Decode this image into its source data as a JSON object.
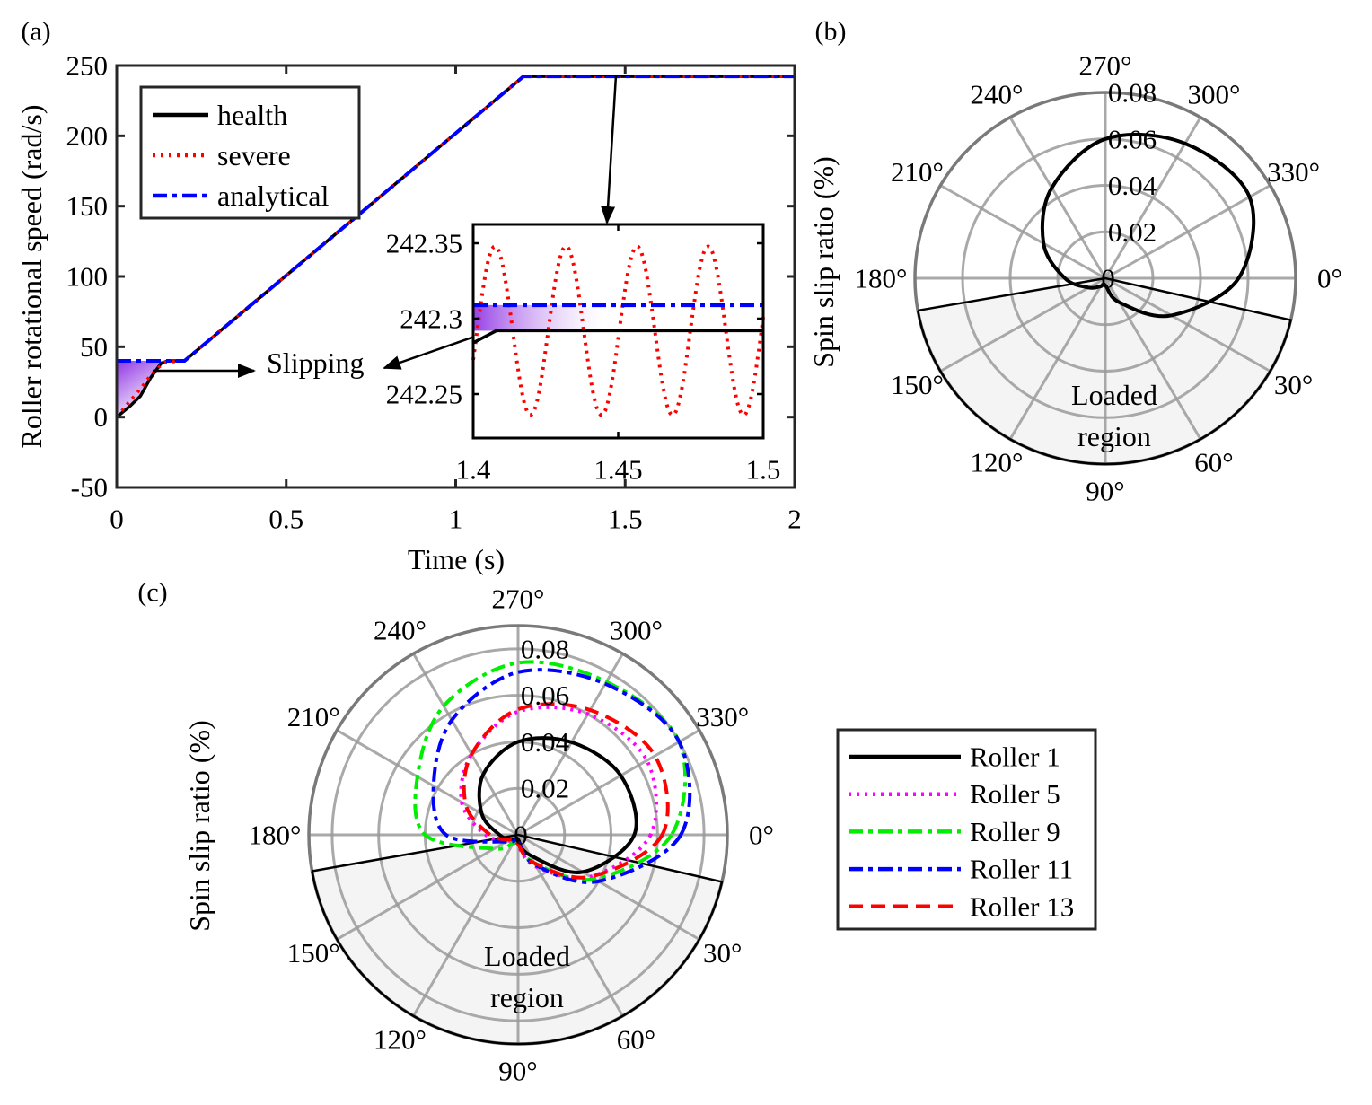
{
  "panel_labels": [
    "(a)",
    "(b)",
    "(c)"
  ],
  "colors": {
    "health": "#000000",
    "severe": "#ff0000",
    "analytical": "#0000ff",
    "roller1": "#000000",
    "roller5": "#ff00ff",
    "roller9": "#00ee00",
    "roller11": "#0000ff",
    "roller13": "#ff0000",
    "slip_fill": "#8a2be2",
    "loaded_fill": "#f4f4f4"
  },
  "chart_data": [
    {
      "type": "line",
      "xlabel": "Time (s)",
      "ylabel": "Roller rotational speed (rad/s)",
      "xlim": [
        0,
        2
      ],
      "ylim": [
        -50,
        250
      ],
      "xticks": [
        "0",
        "0.5",
        "1",
        "1.5",
        "2"
      ],
      "xtick_values": [
        0,
        0.5,
        1,
        1.5,
        2
      ],
      "yticks": [
        "-50",
        "0",
        "50",
        "100",
        "150",
        "200",
        "250"
      ],
      "ytick_values": [
        -50,
        0,
        50,
        100,
        150,
        200,
        250
      ],
      "legend": [
        "health",
        "severe",
        "analytical"
      ],
      "legend_position": "top-left",
      "series": [
        {
          "name": "health",
          "style": "solid",
          "points": [
            [
              0,
              0
            ],
            [
              0.04,
              8
            ],
            [
              0.07,
              15
            ],
            [
              0.1,
              28
            ],
            [
              0.13,
              38
            ],
            [
              0.15,
              40
            ],
            [
              0.2,
              40
            ],
            [
              1.2,
              242.3
            ],
            [
              2,
              242.3
            ]
          ]
        },
        {
          "name": "severe",
          "style": "dotted",
          "points": [
            [
              0,
              0
            ],
            [
              0.03,
              9
            ],
            [
              0.07,
              20
            ],
            [
              0.1,
              30
            ],
            [
              0.14,
              39
            ],
            [
              0.2,
              40
            ],
            [
              1.2,
              242.3
            ],
            [
              2,
              242.3
            ]
          ]
        },
        {
          "name": "analytical",
          "style": "dash-dot",
          "points": [
            [
              0,
              40
            ],
            [
              0.2,
              40
            ],
            [
              1.2,
              242.3
            ],
            [
              2,
              242.3
            ]
          ]
        }
      ],
      "annotation": "Slipping",
      "inset": {
        "xlim": [
          1.4,
          1.5
        ],
        "ylim": [
          242.22,
          242.36
        ],
        "xticks": [
          "1.4",
          "1.45",
          "1.5"
        ],
        "xtick_values": [
          1.4,
          1.45,
          1.5
        ],
        "yticks": [
          "242.25",
          "242.3",
          "242.35"
        ],
        "ytick_values": [
          242.25,
          242.3,
          242.35
        ],
        "health": [
          [
            1.4,
            242.284
          ],
          [
            1.408,
            242.292
          ],
          [
            1.5,
            242.292
          ]
        ],
        "analytical": [
          [
            1.4,
            242.309
          ],
          [
            1.5,
            242.309
          ]
        ],
        "severe": {
          "mean": 242.292,
          "amplitude": 0.056,
          "period": 0.0245,
          "first_peak": 1.4075
        }
      }
    },
    {
      "type": "polar",
      "ylabel": "Spin slip ratio (%)",
      "rlim": [
        0,
        0.08
      ],
      "rticks": [
        "0",
        "0.02",
        "0.04",
        "0.06",
        "0.08"
      ],
      "rtick_values": [
        0,
        0.02,
        0.04,
        0.06,
        0.08
      ],
      "theta_ticks": [
        "0°",
        "30°",
        "60°",
        "90°",
        "120°",
        "150°",
        "180°",
        "210°",
        "240°",
        "270°",
        "300°",
        "330°"
      ],
      "loaded_region": {
        "label_line1": "Loaded",
        "label_line2": "region",
        "theta_range": [
          13,
          170
        ]
      },
      "theta": [
        0,
        30,
        60,
        90,
        120,
        150,
        180,
        210,
        240,
        270,
        300,
        330
      ],
      "series": [
        {
          "name": "Roller 1",
          "r": [
            0.056,
            0.032,
            0.012,
            0.003,
            0.004,
            0.008,
            0.017,
            0.03,
            0.045,
            0.06,
            0.067,
            0.07
          ]
        }
      ]
    },
    {
      "type": "polar",
      "ylabel": "Spin slip ratio (%)",
      "rlim": [
        0,
        0.09
      ],
      "rticks": [
        "0",
        "0.02",
        "0.04",
        "0.06",
        "0.08"
      ],
      "rtick_values": [
        0,
        0.02,
        0.04,
        0.06,
        0.08
      ],
      "theta_ticks": [
        "0°",
        "30°",
        "60°",
        "90°",
        "120°",
        "150°",
        "180°",
        "210°",
        "240°",
        "270°",
        "300°",
        "330°"
      ],
      "loaded_region": {
        "label_line1": "Loaded",
        "label_line2": "region",
        "theta_range": [
          13,
          170
        ]
      },
      "legend": [
        "Roller 1",
        "Roller 5",
        "Roller 9",
        "Roller 11",
        "Roller 13"
      ],
      "legend_position": "right",
      "theta": [
        0,
        30,
        60,
        90,
        120,
        150,
        180,
        210,
        240,
        270,
        300,
        330
      ],
      "series": [
        {
          "name": "Roller 1",
          "style": "solid",
          "r": [
            0.05,
            0.032,
            0.01,
            0.002,
            0.002,
            0.004,
            0.008,
            0.018,
            0.03,
            0.04,
            0.046,
            0.051
          ]
        },
        {
          "name": "Roller 5",
          "style": "dotted",
          "r": [
            0.057,
            0.036,
            0.016,
            0.005,
            0.003,
            0.005,
            0.014,
            0.028,
            0.04,
            0.053,
            0.06,
            0.064
          ]
        },
        {
          "name": "Roller 9",
          "style": "dash-dot",
          "r": [
            0.066,
            0.038,
            0.014,
            0.004,
            0.004,
            0.012,
            0.04,
            0.05,
            0.064,
            0.074,
            0.076,
            0.08
          ]
        },
        {
          "name": "Roller 11",
          "style": "dash-dot",
          "r": [
            0.07,
            0.04,
            0.015,
            0.003,
            0.002,
            0.006,
            0.031,
            0.042,
            0.057,
            0.07,
            0.075,
            0.08
          ]
        },
        {
          "name": "Roller 13",
          "style": "dashed",
          "r": [
            0.062,
            0.036,
            0.014,
            0.004,
            0.002,
            0.004,
            0.012,
            0.026,
            0.04,
            0.054,
            0.062,
            0.068
          ]
        }
      ]
    }
  ]
}
